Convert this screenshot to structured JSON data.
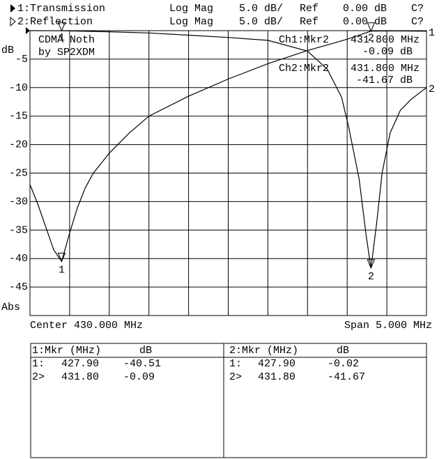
{
  "header": [
    {
      "name": "1:Transmission",
      "format": "Log Mag",
      "scale": "5.0 dB/",
      "ref_label": "Ref",
      "ref": "0.00 dB",
      "status": "C?"
    },
    {
      "name": "2:Reflection",
      "format": "Log Mag",
      "scale": "5.0 dB/",
      "ref_label": "Ref",
      "ref": "0.00 dB",
      "status": "C?"
    }
  ],
  "chart_data": {
    "type": "line",
    "annotations": [
      "CDMA Noth",
      "by SP2XDM"
    ],
    "y_label": "dB",
    "y_format": "Abs",
    "center": "Center 430.000 MHz",
    "span": "Span 5.000 MHz",
    "xlim": [
      427.5,
      432.5
    ],
    "ylim": [
      -50,
      0
    ],
    "yticks": [
      -5,
      -10,
      -15,
      -20,
      -25,
      -30,
      -35,
      -40,
      -45
    ],
    "grid": true,
    "markers": [
      {
        "label": "1",
        "x": 427.9
      },
      {
        "label": "2",
        "x": 431.8
      }
    ],
    "readouts": [
      {
        "name": "Ch1:Mkr2",
        "x": "431.800 MHz",
        "value": "-0.09 dB"
      },
      {
        "name": "Ch2:Mkr2",
        "x": "431.800 MHz",
        "value": "-41.67 dB"
      }
    ],
    "series": [
      {
        "name": "1:Transmission",
        "label": "1",
        "color": "#000000",
        "x": [
          427.5,
          427.6,
          427.7,
          427.8,
          427.9,
          428.0,
          428.1,
          428.2,
          428.3,
          428.5,
          428.75,
          429.0,
          429.5,
          430.0,
          430.5,
          431.0,
          431.5,
          431.8,
          432.1,
          432.5
        ],
        "values": [
          -27.0,
          -30.5,
          -34.5,
          -38.5,
          -40.51,
          -35.5,
          -31.0,
          -27.5,
          -25.0,
          -21.5,
          -18.0,
          -15.0,
          -11.5,
          -8.5,
          -5.8,
          -3.5,
          -1.5,
          -0.09,
          -0.05,
          -0.1
        ],
        "marker_values": [
          -40.51,
          -0.09
        ]
      },
      {
        "name": "2:Reflection",
        "label": "2",
        "color": "#000000",
        "x": [
          427.5,
          427.9,
          428.5,
          429.0,
          429.5,
          430.0,
          430.5,
          431.0,
          431.25,
          431.43,
          431.52,
          431.65,
          431.74,
          431.8,
          431.87,
          431.94,
          432.04,
          432.17,
          432.31,
          432.5
        ],
        "values": [
          0.0,
          -0.02,
          -0.2,
          -0.4,
          -0.8,
          -1.2,
          -1.7,
          -3.6,
          -6.8,
          -11.7,
          -17.0,
          -26.0,
          -36.0,
          -41.67,
          -34.0,
          -25.0,
          -18.0,
          -14.0,
          -12.0,
          -10.0
        ],
        "marker_values": [
          -0.02,
          -41.67
        ]
      }
    ]
  },
  "table": [
    {
      "header": [
        "1:Mkr (MHz)",
        "dB"
      ],
      "rows": [
        [
          "1:",
          "427.90",
          "-40.51"
        ],
        [
          "2>",
          "431.80",
          "-0.09"
        ]
      ]
    },
    {
      "header": [
        "2:Mkr (MHz)",
        "dB"
      ],
      "rows": [
        [
          "1:",
          "427.90",
          "-0.02"
        ],
        [
          "2>",
          "431.80",
          "-41.67"
        ]
      ]
    }
  ]
}
